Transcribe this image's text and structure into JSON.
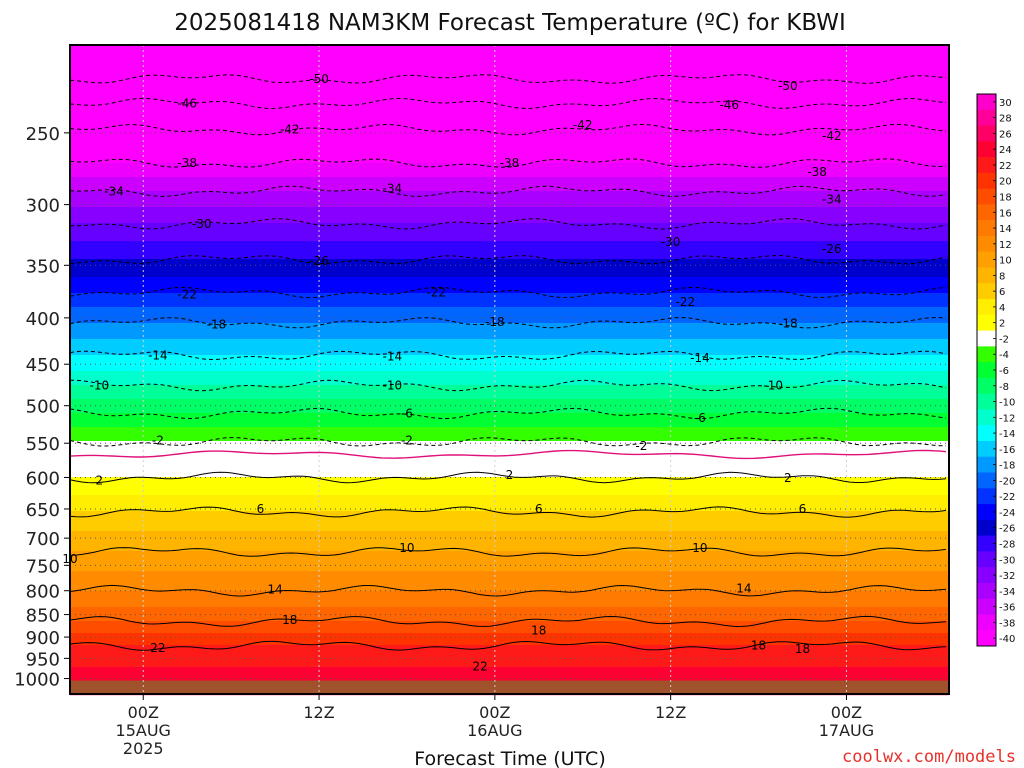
{
  "chart_data": {
    "type": "heatmap",
    "title": "2025081418 NAM3KM Forecast Temperature (ºC) for KBWI",
    "xlabel": "Forecast Time (UTC)",
    "ylabel": "",
    "y_scale": "log-pressure",
    "ylim": [
      1040,
      200
    ],
    "xlim_hours_from_00Z15AUG": [
      -5,
      55
    ],
    "pressure_ticks": [
      250,
      300,
      350,
      400,
      450,
      500,
      550,
      600,
      650,
      700,
      750,
      800,
      850,
      900,
      950,
      1000
    ],
    "x_ticks": [
      {
        "hour": 0,
        "lines": [
          "00Z",
          "15AUG",
          "2025"
        ]
      },
      {
        "hour": 12,
        "lines": [
          "12Z"
        ]
      },
      {
        "hour": 24,
        "lines": [
          "00Z",
          "16AUG"
        ]
      },
      {
        "hour": 36,
        "lines": [
          "12Z"
        ]
      },
      {
        "hour": 48,
        "lines": [
          "00Z",
          "17AUG"
        ]
      }
    ],
    "grid": true,
    "colorbar": {
      "placement": "right",
      "labels": [
        "30",
        "28",
        "26",
        "24",
        "22",
        "20",
        "18",
        "16",
        "14",
        "12",
        "10",
        "8",
        "6",
        "4",
        "2",
        "-2",
        "-4",
        "-6",
        "-8",
        "-10",
        "-12",
        "-14",
        "-16",
        "-18",
        "-20",
        "-22",
        "-24",
        "-26",
        "-28",
        "-30",
        "-32",
        "-34",
        "-36",
        "-38",
        "-40"
      ],
      "colors": [
        "#ff00cc",
        "#ff0099",
        "#ff0066",
        "#ff0033",
        "#ff1a1a",
        "#ff3300",
        "#ff4d00",
        "#ff6600",
        "#ff7a00",
        "#ff8c00",
        "#ffa000",
        "#ffb400",
        "#ffcc00",
        "#ffee00",
        "#ffff00",
        "#ffffff",
        "#33ff00",
        "#00ff33",
        "#00ff66",
        "#00ff99",
        "#00ffcc",
        "#00ffff",
        "#00ccff",
        "#0099ff",
        "#0066ff",
        "#0033ff",
        "#0000ff",
        "#0000cc",
        "#3300ff",
        "#6600ff",
        "#8800ff",
        "#aa00ff",
        "#cc00ff",
        "#ee00ff",
        "#ff00ff"
      ]
    },
    "isotherm_profile": [
      {
        "pressure": 200,
        "temp": -54
      },
      {
        "pressure": 218,
        "temp": -50
      },
      {
        "pressure": 232,
        "temp": -46
      },
      {
        "pressure": 248,
        "temp": -42
      },
      {
        "pressure": 270,
        "temp": -38
      },
      {
        "pressure": 290,
        "temp": -34
      },
      {
        "pressure": 315,
        "temp": -30
      },
      {
        "pressure": 345,
        "temp": -26
      },
      {
        "pressure": 375,
        "temp": -22
      },
      {
        "pressure": 405,
        "temp": -18
      },
      {
        "pressure": 440,
        "temp": -14
      },
      {
        "pressure": 475,
        "temp": -10
      },
      {
        "pressure": 510,
        "temp": -6
      },
      {
        "pressure": 548,
        "temp": -2
      },
      {
        "pressure": 555,
        "temp": 0
      },
      {
        "pressure": 600,
        "temp": 2
      },
      {
        "pressure": 655,
        "temp": 6
      },
      {
        "pressure": 725,
        "temp": 10
      },
      {
        "pressure": 800,
        "temp": 14
      },
      {
        "pressure": 865,
        "temp": 18
      },
      {
        "pressure": 920,
        "temp": 22
      },
      {
        "pressure": 1000,
        "temp": 25
      },
      {
        "pressure": 1040,
        "temp": 26
      }
    ],
    "contour_labels": [
      {
        "text": "-50",
        "hour": 12,
        "pressure": 218
      },
      {
        "text": "-50",
        "hour": 44,
        "pressure": 222
      },
      {
        "text": "-46",
        "hour": 3,
        "pressure": 232
      },
      {
        "text": "-46",
        "hour": 40,
        "pressure": 233
      },
      {
        "text": "-42",
        "hour": 10,
        "pressure": 248
      },
      {
        "text": "-42",
        "hour": 30,
        "pressure": 245
      },
      {
        "text": "-42",
        "hour": 47,
        "pressure": 252
      },
      {
        "text": "-38",
        "hour": 3,
        "pressure": 270
      },
      {
        "text": "-38",
        "hour": 25,
        "pressure": 270
      },
      {
        "text": "-38",
        "hour": 46,
        "pressure": 276
      },
      {
        "text": "-34",
        "hour": -2,
        "pressure": 290
      },
      {
        "text": "-34",
        "hour": 17,
        "pressure": 288
      },
      {
        "text": "-34",
        "hour": 47,
        "pressure": 296
      },
      {
        "text": "-30",
        "hour": 4,
        "pressure": 315
      },
      {
        "text": "-30",
        "hour": 36,
        "pressure": 330
      },
      {
        "text": "-26",
        "hour": 12,
        "pressure": 346
      },
      {
        "text": "-26",
        "hour": 47,
        "pressure": 336
      },
      {
        "text": "-22",
        "hour": 3,
        "pressure": 377
      },
      {
        "text": "-22",
        "hour": 20,
        "pressure": 375
      },
      {
        "text": "-22",
        "hour": 37,
        "pressure": 384
      },
      {
        "text": "-18",
        "hour": 5,
        "pressure": 407
      },
      {
        "text": "-18",
        "hour": 24,
        "pressure": 404
      },
      {
        "text": "-18",
        "hour": 44,
        "pressure": 406
      },
      {
        "text": "-14",
        "hour": 1,
        "pressure": 440
      },
      {
        "text": "-14",
        "hour": 17,
        "pressure": 441
      },
      {
        "text": "-14",
        "hour": 38,
        "pressure": 443
      },
      {
        "text": "-10",
        "hour": -3,
        "pressure": 475
      },
      {
        "text": "-10",
        "hour": 17,
        "pressure": 475
      },
      {
        "text": "-10",
        "hour": 43,
        "pressure": 475
      },
      {
        "text": "-6",
        "hour": 18,
        "pressure": 510
      },
      {
        "text": "-6",
        "hour": 38,
        "pressure": 516
      },
      {
        "text": "-2",
        "hour": 1,
        "pressure": 546
      },
      {
        "text": "-2",
        "hour": 18,
        "pressure": 546
      },
      {
        "text": "-2",
        "hour": 34,
        "pressure": 554
      },
      {
        "text": "2",
        "hour": -3,
        "pressure": 605
      },
      {
        "text": "2",
        "hour": 25,
        "pressure": 596
      },
      {
        "text": "2",
        "hour": 44,
        "pressure": 601
      },
      {
        "text": "6",
        "hour": 8,
        "pressure": 650
      },
      {
        "text": "6",
        "hour": 27,
        "pressure": 650
      },
      {
        "text": "6",
        "hour": 45,
        "pressure": 650
      },
      {
        "text": "10",
        "hour": -5,
        "pressure": 738
      },
      {
        "text": "10",
        "hour": 18,
        "pressure": 718
      },
      {
        "text": "10",
        "hour": 38,
        "pressure": 718
      },
      {
        "text": "14",
        "hour": 9,
        "pressure": 798
      },
      {
        "text": "14",
        "hour": 41,
        "pressure": 795
      },
      {
        "text": "18",
        "hour": 10,
        "pressure": 862
      },
      {
        "text": "18",
        "hour": 27,
        "pressure": 885
      },
      {
        "text": "18",
        "hour": 42,
        "pressure": 920
      },
      {
        "text": "18",
        "hour": 45,
        "pressure": 928
      },
      {
        "text": "22",
        "hour": 1,
        "pressure": 925
      },
      {
        "text": "22",
        "hour": 23,
        "pressure": 970
      }
    ]
  },
  "footer": {
    "credit": "coolwx.com/models"
  }
}
